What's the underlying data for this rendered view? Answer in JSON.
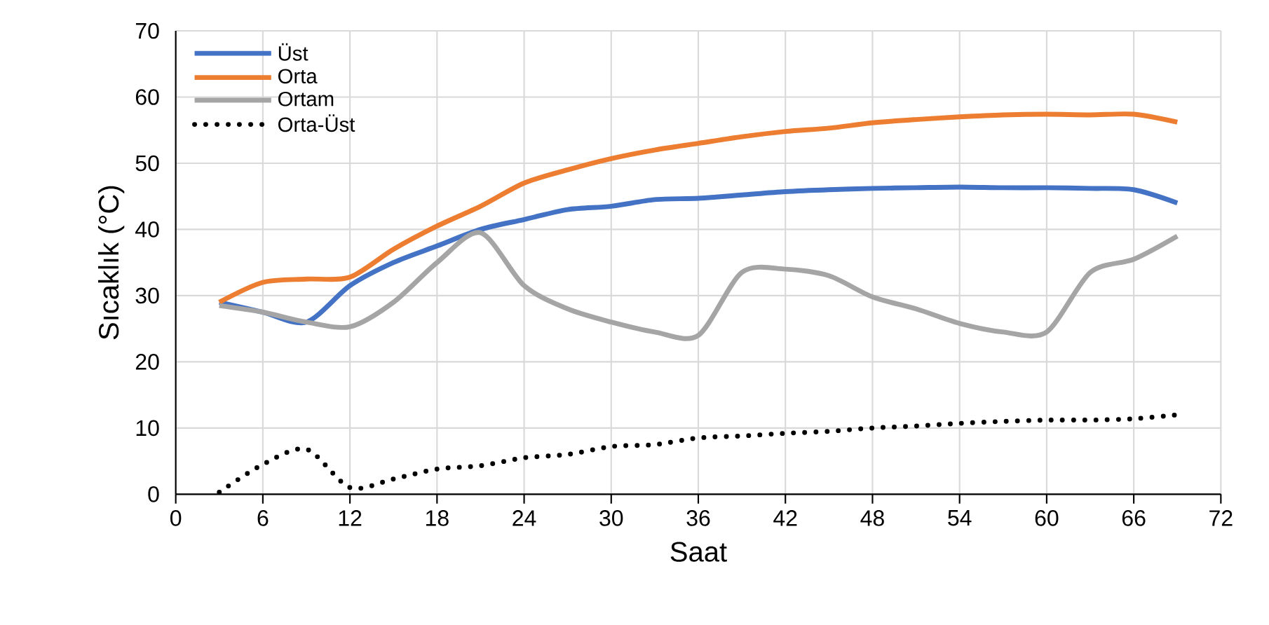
{
  "chart_data": {
    "type": "line",
    "xlabel": "Saat",
    "ylabel": "Sıcaklık (°C)",
    "x": [
      3,
      6,
      9,
      12,
      15,
      18,
      21,
      24,
      27,
      30,
      33,
      36,
      39,
      42,
      45,
      48,
      51,
      54,
      57,
      60,
      63,
      66,
      69
    ],
    "series": [
      {
        "name": "Üst",
        "color": "#4472c4",
        "values": [
          29,
          27.5,
          26,
          31.5,
          35,
          37.5,
          40,
          41.5,
          43,
          43.5,
          44.5,
          44.7,
          45.2,
          45.7,
          46,
          46.2,
          46.3,
          46.4,
          46.3,
          46.3,
          46.2,
          46,
          44
        ]
      },
      {
        "name": "Orta",
        "color": "#ed7d31",
        "values": [
          29,
          32,
          32.5,
          32.8,
          37,
          40.5,
          43.5,
          47,
          49,
          50.7,
          52,
          53,
          54,
          54.8,
          55.3,
          56.1,
          56.6,
          57,
          57.3,
          57.4,
          57.3,
          57.4,
          56.2
        ]
      },
      {
        "name": "Ortam",
        "color": "#a5a5a5",
        "values": [
          28.5,
          27.5,
          26,
          25.3,
          29,
          35,
          39.5,
          31.5,
          28,
          26,
          24.5,
          24,
          33.5,
          34,
          33,
          29.8,
          28,
          25.8,
          24.5,
          24.5,
          33.5,
          35.5,
          39
        ]
      },
      {
        "name": "Orta-Üst",
        "color": "#000000",
        "line_style": "dotted",
        "values": [
          0.3,
          4.5,
          6.8,
          1,
          2.3,
          3.8,
          4.3,
          5.5,
          6,
          7.2,
          7.5,
          8.5,
          8.8,
          9.2,
          9.5,
          10,
          10.3,
          10.7,
          11,
          11.2,
          11.2,
          11.4,
          12
        ]
      }
    ],
    "xlim": [
      0,
      72
    ],
    "ylim": [
      0,
      70
    ],
    "xticks": [
      0,
      6,
      12,
      18,
      24,
      30,
      36,
      42,
      48,
      54,
      60,
      66,
      72
    ],
    "yticks": [
      0,
      10,
      20,
      30,
      40,
      50,
      60,
      70
    ],
    "grid": true,
    "legend": "top left",
    "marker": "none"
  }
}
